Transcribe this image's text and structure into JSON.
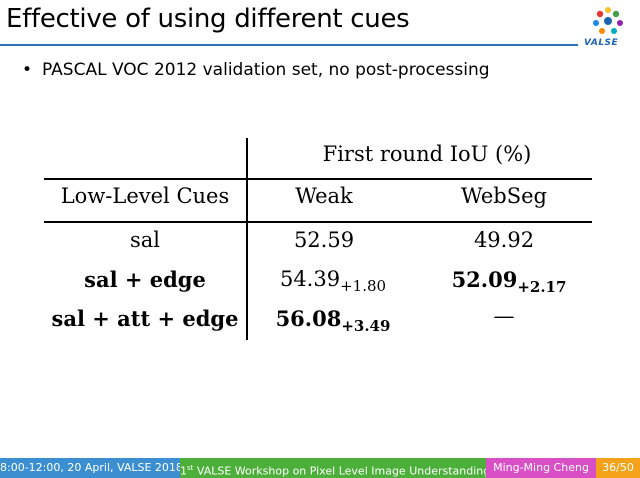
{
  "slide": {
    "title": "Effective of using different cues",
    "logo_text": "VALSE",
    "bullet": "PASCAL VOC 2012 validation set, no post-processing"
  },
  "table": {
    "group_header": "First round IoU (%)",
    "col_header_0": "Low-Level Cues",
    "col_header_1": "Weak",
    "col_header_2": "WebSeg",
    "rows": [
      {
        "cue": "sal",
        "weak": "52.59",
        "weak_delta": "",
        "webseg": "49.92",
        "webseg_delta": ""
      },
      {
        "cue": "sal + edge",
        "weak": "54.39",
        "weak_delta": "+1.80",
        "webseg": "52.09",
        "webseg_delta": "+2.17"
      },
      {
        "cue": "sal + att + edge",
        "weak": "56.08",
        "weak_delta": "+3.49",
        "webseg": "—",
        "webseg_delta": ""
      }
    ]
  },
  "footer": {
    "date": "8:00-12:00, 20 April, VALSE 2018",
    "ordinal": "1",
    "ordinal_suffix": "st",
    "workshop": " VALSE Workshop on Pixel Level Image Understanding",
    "author": "Ming-Ming Cheng",
    "page": "36/50",
    "colors": {
      "date": "#3b8fd1",
      "workshop": "#4caf3a",
      "author": "#d94fc5",
      "page": "#f5a21b"
    }
  }
}
